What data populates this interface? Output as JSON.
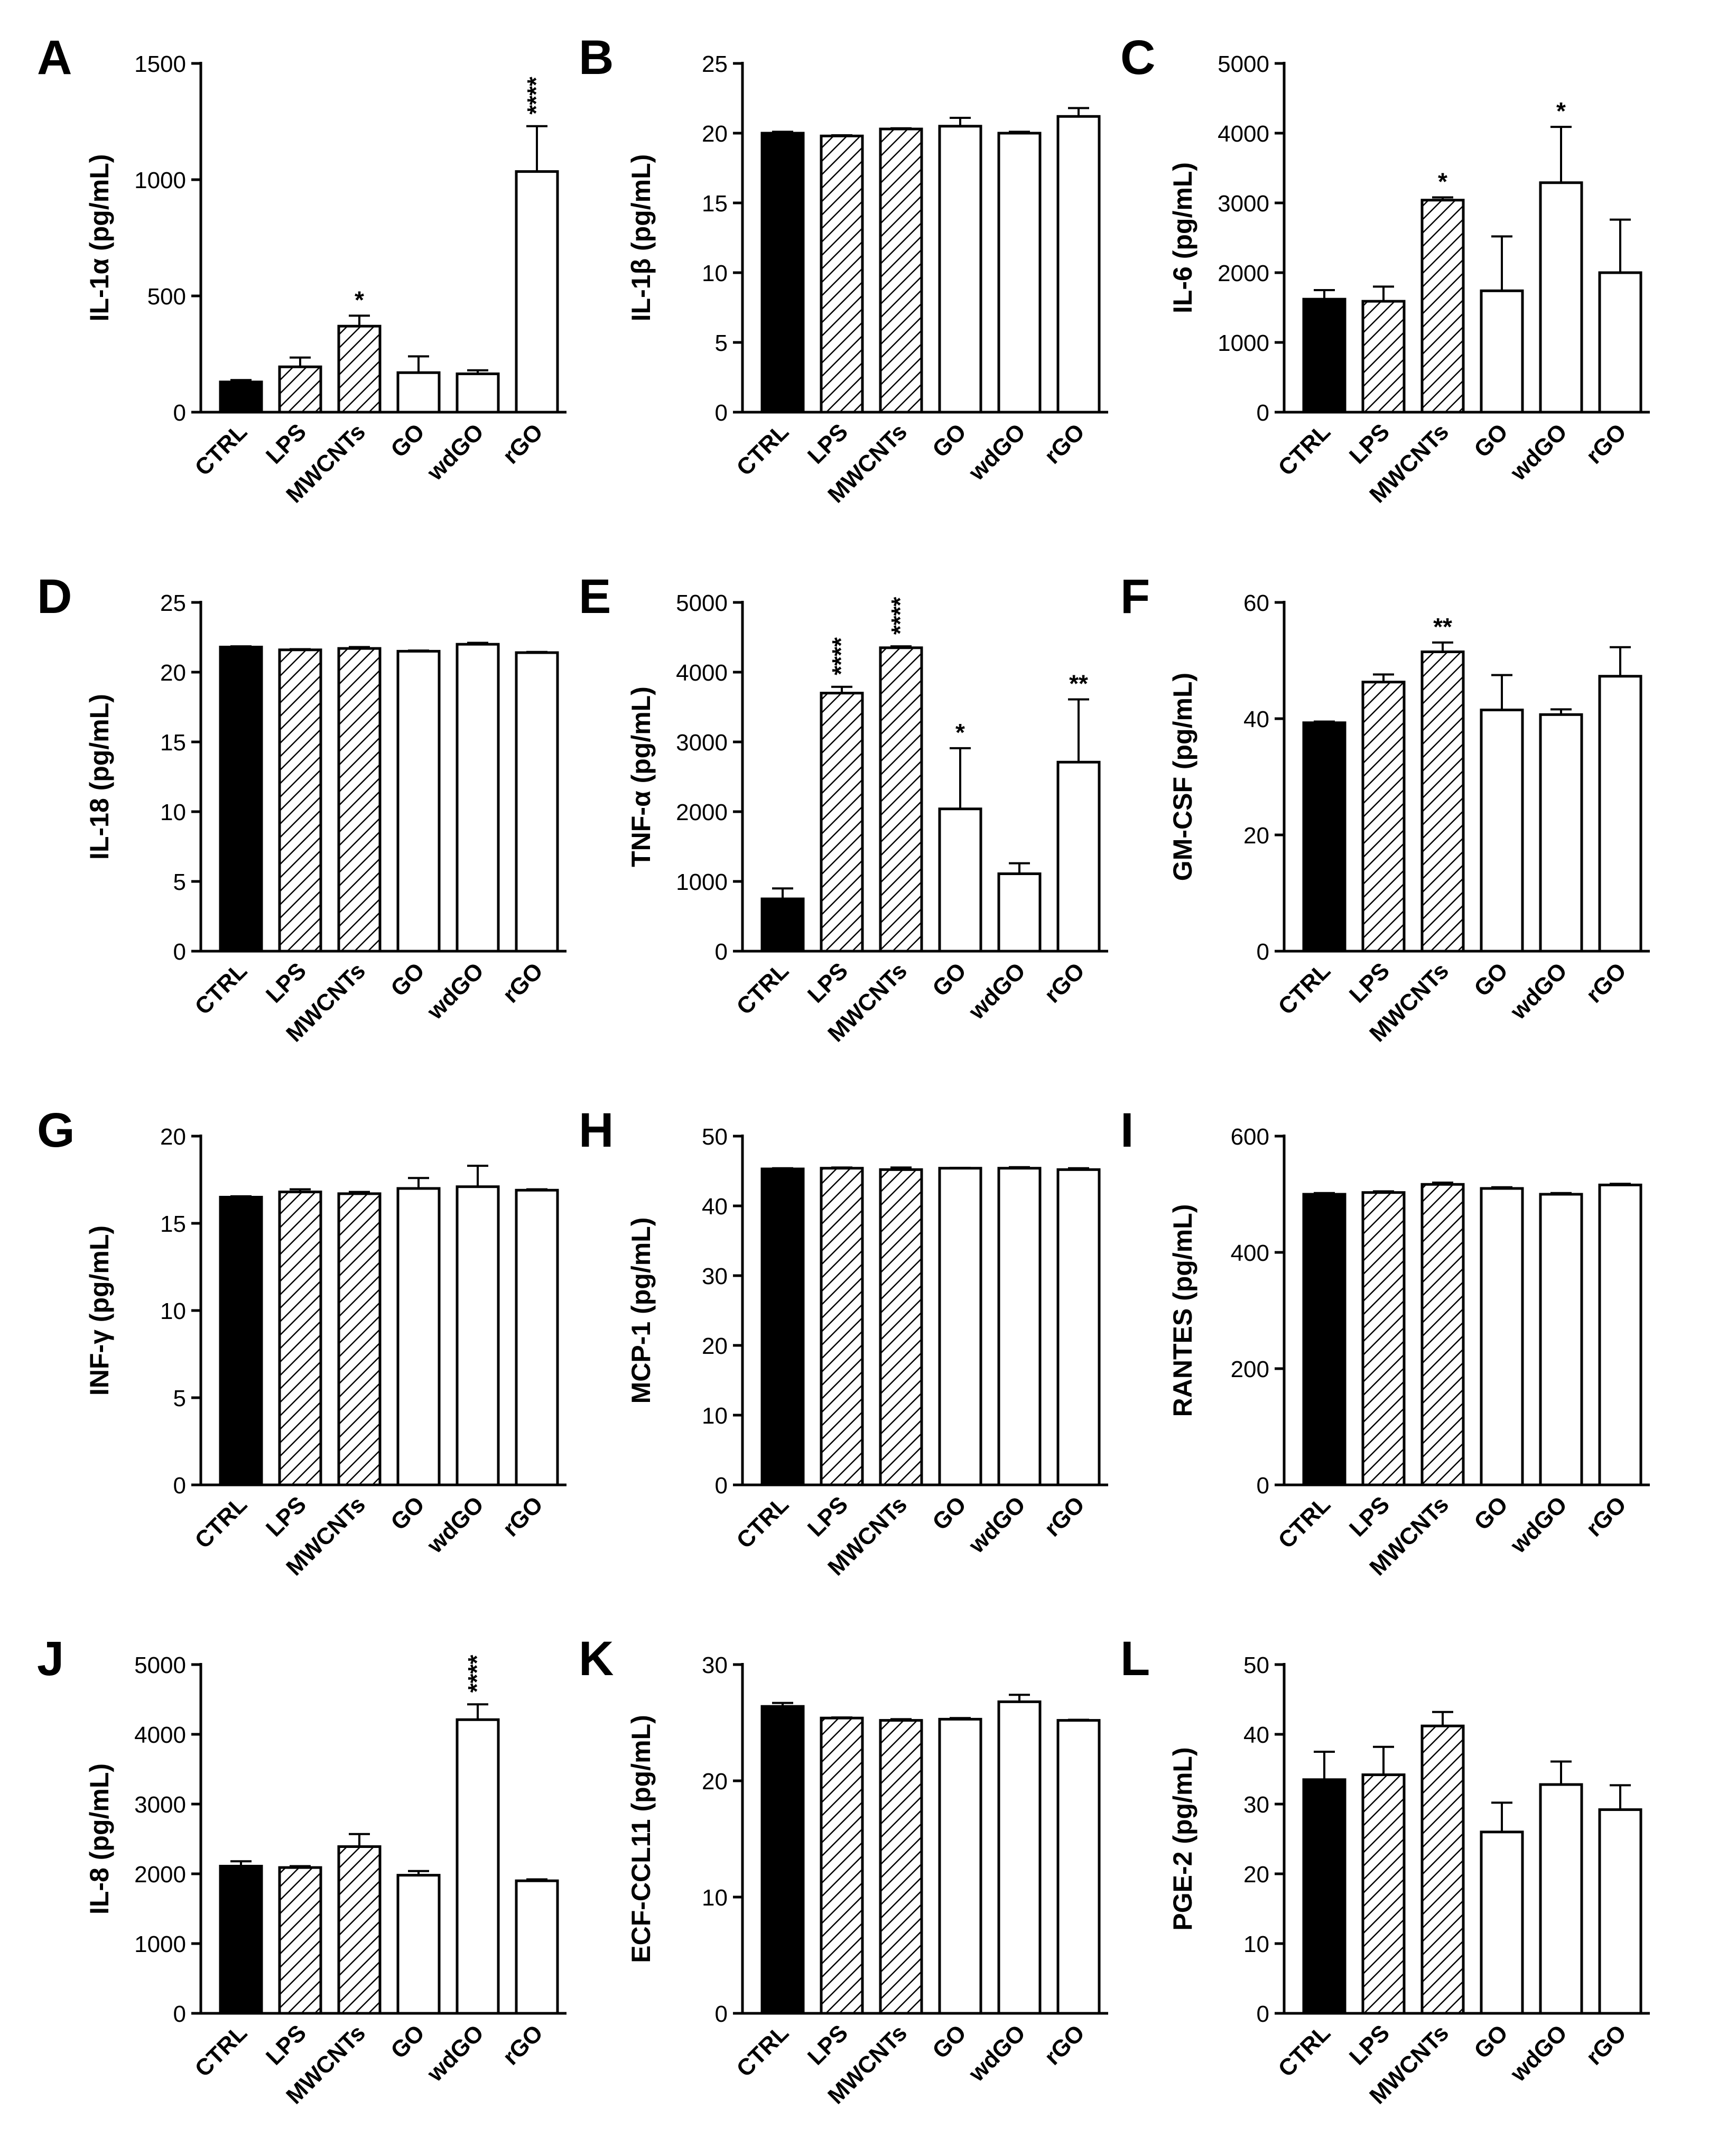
{
  "figure": {
    "categories": [
      "CTRL",
      "LPS",
      "MWCNTs",
      "GO",
      "wdGO",
      "rGO"
    ],
    "fills": [
      "solid",
      "hatch",
      "hatch",
      "open",
      "open",
      "open"
    ],
    "colors": {
      "ink": "#000000",
      "background": "#ffffff"
    }
  },
  "chart_data": [
    {
      "panel": "A",
      "type": "bar",
      "ylabel": "IL-1α (pg/mL)",
      "ylim": [
        0,
        1500
      ],
      "yticks": [
        0,
        500,
        1000,
        1500
      ],
      "values": [
        130,
        195,
        370,
        170,
        165,
        1035
      ],
      "errors": [
        8,
        40,
        45,
        70,
        15,
        195
      ],
      "significance": [
        "",
        "",
        "*",
        "",
        "",
        "****"
      ]
    },
    {
      "panel": "B",
      "type": "bar",
      "ylabel": "IL-1β (pg/mL)",
      "ylim": [
        0,
        25
      ],
      "yticks": [
        0,
        5,
        10,
        15,
        20,
        25
      ],
      "values": [
        20.0,
        19.8,
        20.3,
        20.5,
        20.0,
        21.2
      ],
      "errors": [
        0.1,
        0.05,
        0.05,
        0.6,
        0.1,
        0.6
      ],
      "significance": [
        "",
        "",
        "",
        "",
        "",
        ""
      ]
    },
    {
      "panel": "C",
      "type": "bar",
      "ylabel": "IL-6 (pg/mL)",
      "ylim": [
        0,
        5000
      ],
      "yticks": [
        0,
        1000,
        2000,
        3000,
        4000,
        5000
      ],
      "values": [
        1620,
        1590,
        3040,
        1740,
        3290,
        2000
      ],
      "errors": [
        130,
        210,
        40,
        780,
        800,
        760
      ],
      "significance": [
        "",
        "",
        "*",
        "",
        "*",
        ""
      ]
    },
    {
      "panel": "D",
      "type": "bar",
      "ylabel": "IL-18 (pg/mL)",
      "ylim": [
        0,
        25
      ],
      "yticks": [
        0,
        5,
        10,
        15,
        20,
        25
      ],
      "values": [
        21.8,
        21.6,
        21.7,
        21.5,
        22.0,
        21.4
      ],
      "errors": [
        0.05,
        0.05,
        0.1,
        0.05,
        0.1,
        0.05
      ],
      "significance": [
        "",
        "",
        "",
        "",
        "",
        ""
      ]
    },
    {
      "panel": "E",
      "type": "bar",
      "ylabel": "TNF-α (pg/mL)",
      "ylim": [
        0,
        5000
      ],
      "yticks": [
        0,
        1000,
        2000,
        3000,
        4000,
        5000
      ],
      "values": [
        750,
        3700,
        4350,
        2040,
        1110,
        2710
      ],
      "errors": [
        150,
        90,
        20,
        870,
        150,
        900
      ],
      "significance": [
        "",
        "****",
        "****",
        "*",
        "",
        "**"
      ]
    },
    {
      "panel": "F",
      "type": "bar",
      "ylabel": "GM-CSF (pg/mL)",
      "ylim": [
        0,
        60
      ],
      "yticks": [
        0,
        20,
        40,
        60
      ],
      "values": [
        39.3,
        46.3,
        51.5,
        41.5,
        40.7,
        47.3
      ],
      "errors": [
        0.2,
        1.3,
        1.6,
        6.0,
        0.9,
        5.0
      ],
      "significance": [
        "",
        "",
        "**",
        "",
        "",
        ""
      ]
    },
    {
      "panel": "G",
      "type": "bar",
      "ylabel": "INF-γ (pg/mL)",
      "ylim": [
        0,
        20
      ],
      "yticks": [
        0,
        5,
        10,
        15,
        20
      ],
      "values": [
        16.5,
        16.8,
        16.7,
        17.0,
        17.1,
        16.9
      ],
      "errors": [
        0.05,
        0.15,
        0.1,
        0.6,
        1.2,
        0.05
      ],
      "significance": [
        "",
        "",
        "",
        "",
        "",
        ""
      ]
    },
    {
      "panel": "H",
      "type": "bar",
      "ylabel": "MCP-1 (pg/mL)",
      "ylim": [
        0,
        50
      ],
      "yticks": [
        0,
        10,
        20,
        30,
        40,
        50
      ],
      "values": [
        45.3,
        45.4,
        45.2,
        45.4,
        45.4,
        45.2
      ],
      "errors": [
        0.1,
        0.1,
        0.3,
        0.05,
        0.15,
        0.2
      ],
      "significance": [
        "",
        "",
        "",
        "",
        "",
        ""
      ]
    },
    {
      "panel": "I",
      "type": "bar",
      "ylabel": "RANTES (pg/mL)",
      "ylim": [
        0,
        600
      ],
      "yticks": [
        0,
        200,
        400,
        600
      ],
      "values": [
        500,
        503,
        517,
        510,
        500,
        516
      ],
      "errors": [
        2,
        2,
        3,
        2,
        2,
        2
      ],
      "significance": [
        "",
        "",
        "",
        "",
        "",
        ""
      ]
    },
    {
      "panel": "J",
      "type": "bar",
      "ylabel": "IL-8 (pg/mL)",
      "ylim": [
        0,
        5000
      ],
      "yticks": [
        0,
        1000,
        2000,
        3000,
        4000,
        5000
      ],
      "values": [
        2110,
        2090,
        2390,
        1980,
        4210,
        1900
      ],
      "errors": [
        70,
        20,
        180,
        60,
        220,
        20
      ],
      "significance": [
        "",
        "",
        "",
        "",
        "****",
        ""
      ]
    },
    {
      "panel": "K",
      "type": "bar",
      "ylabel": "ECF-CCL11 (pg/mL)",
      "ylim": [
        0,
        30
      ],
      "yticks": [
        0,
        10,
        20,
        30
      ],
      "values": [
        26.4,
        25.4,
        25.2,
        25.3,
        26.8,
        25.2
      ],
      "errors": [
        0.3,
        0.05,
        0.1,
        0.1,
        0.6,
        0.05
      ],
      "significance": [
        "",
        "",
        "",
        "",
        "",
        ""
      ]
    },
    {
      "panel": "L",
      "type": "bar",
      "ylabel": "PGE-2 (pg/mL)",
      "ylim": [
        0,
        50
      ],
      "yticks": [
        0,
        10,
        20,
        30,
        40,
        50
      ],
      "values": [
        33.5,
        34.2,
        41.2,
        26.0,
        32.8,
        29.2
      ],
      "errors": [
        4.0,
        4.0,
        2.0,
        4.2,
        3.3,
        3.5
      ],
      "significance": [
        "",
        "",
        "",
        "",
        "",
        ""
      ]
    }
  ]
}
